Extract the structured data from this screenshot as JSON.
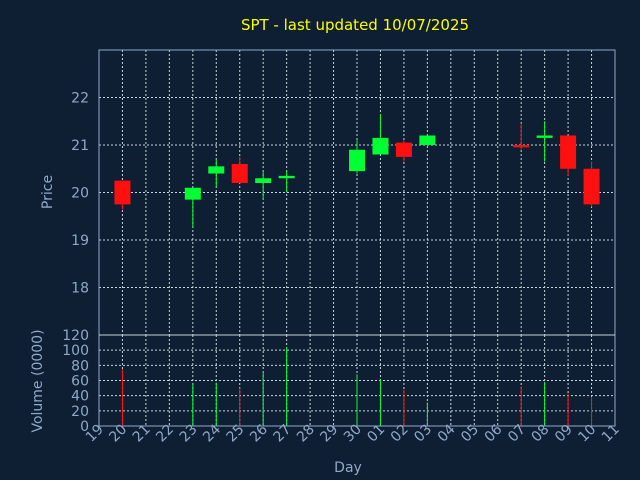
{
  "chart_data": {
    "type": "candlestick",
    "title": "SPT - last updated 10/07/2025",
    "xlabel": "Day",
    "x_ticks": [
      "19",
      "20",
      "21",
      "22",
      "23",
      "24",
      "25",
      "26",
      "27",
      "28",
      "29",
      "30",
      "01",
      "02",
      "03",
      "04",
      "05",
      "06",
      "07",
      "08",
      "09",
      "10",
      "11"
    ],
    "price_panel": {
      "ylabel": "Price",
      "ylim": [
        17,
        23
      ],
      "y_ticks": [
        18,
        19,
        20,
        21,
        22
      ],
      "candles": [
        {
          "day": "20",
          "open": 20.25,
          "high": 20.25,
          "low": 19.65,
          "close": 19.75
        },
        {
          "day": "23",
          "open": 19.85,
          "high": 20.1,
          "low": 19.25,
          "close": 20.1
        },
        {
          "day": "24",
          "open": 20.4,
          "high": 20.7,
          "low": 20.1,
          "close": 20.55
        },
        {
          "day": "25",
          "open": 20.6,
          "high": 20.75,
          "low": 20.2,
          "close": 20.2
        },
        {
          "day": "26",
          "open": 20.2,
          "high": 20.45,
          "low": 19.85,
          "close": 20.3
        },
        {
          "day": "27",
          "open": 20.3,
          "high": 20.45,
          "low": 20.0,
          "close": 20.35
        },
        {
          "day": "30",
          "open": 20.45,
          "high": 21.1,
          "low": 20.4,
          "close": 20.9
        },
        {
          "day": "01",
          "open": 20.8,
          "high": 21.65,
          "low": 20.8,
          "close": 21.15
        },
        {
          "day": "02",
          "open": 21.05,
          "high": 21.1,
          "low": 20.65,
          "close": 20.75
        },
        {
          "day": "03",
          "open": 21.0,
          "high": 21.2,
          "low": 21.0,
          "close": 21.2
        },
        {
          "day": "07",
          "open": 21.0,
          "high": 21.45,
          "low": 20.9,
          "close": 20.95
        },
        {
          "day": "08",
          "open": 21.15,
          "high": 21.5,
          "low": 20.65,
          "close": 21.2
        },
        {
          "day": "09",
          "open": 21.2,
          "high": 21.2,
          "low": 20.35,
          "close": 20.5
        },
        {
          "day": "10",
          "open": 20.5,
          "high": 20.65,
          "low": 19.7,
          "close": 19.75
        }
      ]
    },
    "volume_panel": {
      "ylabel": "Volume (0000)",
      "ylim": [
        0,
        120
      ],
      "y_ticks": [
        0,
        20,
        40,
        60,
        80,
        100,
        120
      ],
      "bars": [
        {
          "day": "20",
          "value": 75,
          "color": "red"
        },
        {
          "day": "23",
          "value": 55,
          "color": "green"
        },
        {
          "day": "24",
          "value": 57,
          "color": "green"
        },
        {
          "day": "25",
          "value": 50,
          "color": "red"
        },
        {
          "day": "26",
          "value": 70,
          "color": "green"
        },
        {
          "day": "27",
          "value": 104,
          "color": "green"
        },
        {
          "day": "30",
          "value": 68,
          "color": "green"
        },
        {
          "day": "01",
          "value": 61,
          "color": "green"
        },
        {
          "day": "02",
          "value": 48,
          "color": "red"
        },
        {
          "day": "03",
          "value": 31,
          "color": "green"
        },
        {
          "day": "07",
          "value": 52,
          "color": "red"
        },
        {
          "day": "08",
          "value": 58,
          "color": "green"
        },
        {
          "day": "09",
          "value": 43,
          "color": "red"
        },
        {
          "day": "10",
          "value": 38,
          "color": "red"
        }
      ]
    },
    "colors": {
      "background": "#0f1f33",
      "up": "#00ff33",
      "down": "#ff1010",
      "title": "#ffff00",
      "axis_text": "#8fa8c8",
      "grid": "#c8d2dc"
    },
    "grid": true
  }
}
